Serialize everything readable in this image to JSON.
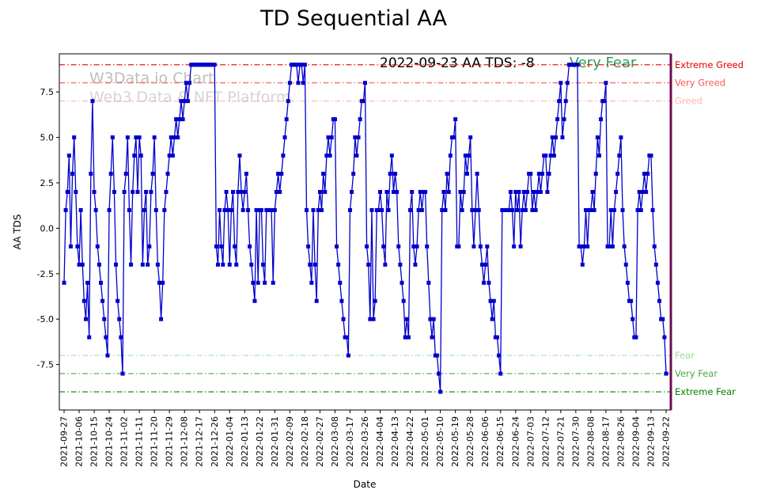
{
  "chart_data": {
    "type": "line",
    "title": "TD Sequential AA",
    "xlabel": "Date",
    "ylabel": "AA TDS",
    "ylim": [
      -10,
      9.6
    ],
    "legend": "none",
    "grid": false,
    "x_tick_every": 9,
    "x_tick_labels": [
      "2021-09-27",
      "2021-10-06",
      "2021-10-15",
      "2021-10-24",
      "2021-11-02",
      "2021-11-11",
      "2021-11-20",
      "2021-11-29",
      "2021-12-08",
      "2021-12-17",
      "2021-12-26",
      "2022-01-04",
      "2022-01-13",
      "2022-01-22",
      "2022-01-31",
      "2022-02-09",
      "2022-02-18",
      "2022-02-27",
      "2022-03-08",
      "2022-03-17",
      "2022-03-26",
      "2022-04-04",
      "2022-04-13",
      "2022-04-22",
      "2022-05-01",
      "2022-05-10",
      "2022-05-19",
      "2022-05-28",
      "2022-06-06",
      "2022-06-15",
      "2022-06-24",
      "2022-07-03",
      "2022-07-12",
      "2022-07-21",
      "2022-07-30",
      "2022-08-08",
      "2022-08-17",
      "2022-08-26",
      "2022-09-04",
      "2022-09-13",
      "2022-09-22"
    ],
    "y_tick_labels": [
      "7.5",
      "5.0",
      "2.5",
      "0.0",
      "-2.5",
      "-5.0",
      "-7.5"
    ],
    "series": [
      {
        "name": "AA TDS",
        "color": "#0000cc",
        "marker": "square",
        "values": [
          -3,
          1,
          2,
          4,
          -1,
          3,
          5,
          2,
          -1,
          -2,
          1,
          -2,
          -4,
          -5,
          -3,
          -6,
          3,
          7,
          2,
          1,
          -1,
          -2,
          -3,
          -4,
          -5,
          -6,
          -7,
          1,
          3,
          5,
          2,
          -2,
          -4,
          -5,
          -6,
          -8,
          2,
          3,
          5,
          1,
          -2,
          2,
          4,
          5,
          2,
          5,
          4,
          -2,
          1,
          2,
          -2,
          -1,
          2,
          3,
          5,
          1,
          -2,
          -3,
          -5,
          -3,
          1,
          2,
          3,
          4,
          5,
          4,
          5,
          6,
          5,
          6,
          7,
          6,
          7,
          8,
          7,
          8,
          9,
          9,
          9,
          9,
          9,
          9,
          9,
          9,
          9,
          9,
          9,
          9,
          9,
          9,
          9,
          -1,
          -2,
          1,
          -1,
          -2,
          1,
          2,
          1,
          -2,
          1,
          2,
          -1,
          -2,
          2,
          4,
          2,
          1,
          2,
          3,
          1,
          -1,
          -2,
          -3,
          -4,
          1,
          -3,
          1,
          1,
          -2,
          -3,
          1,
          1,
          1,
          1,
          -3,
          1,
          2,
          3,
          2,
          3,
          4,
          5,
          6,
          7,
          8,
          9,
          9,
          9,
          9,
          8,
          9,
          9,
          8,
          9,
          1,
          -1,
          -2,
          -3,
          1,
          -2,
          -4,
          1,
          2,
          1,
          3,
          2,
          4,
          5,
          4,
          5,
          6,
          6,
          -1,
          -2,
          -3,
          -4,
          -5,
          -6,
          -6,
          -7,
          1,
          2,
          3,
          5,
          4,
          5,
          6,
          7,
          7,
          8,
          -1,
          -2,
          -5,
          1,
          -5,
          -4,
          1,
          1,
          2,
          1,
          -1,
          -2,
          2,
          1,
          3,
          4,
          2,
          3,
          2,
          -1,
          -2,
          -3,
          -4,
          -6,
          -5,
          -6,
          1,
          2,
          -1,
          -2,
          -1,
          1,
          2,
          1,
          2,
          2,
          -1,
          -3,
          -5,
          -6,
          -5,
          -7,
          -7,
          -8,
          -9,
          1,
          2,
          1,
          3,
          2,
          4,
          5,
          5,
          6,
          -1,
          -1,
          2,
          1,
          2,
          4,
          3,
          4,
          5,
          1,
          -1,
          1,
          3,
          1,
          -1,
          -2,
          -3,
          -2,
          -1,
          -3,
          -4,
          -5,
          -4,
          -6,
          -6,
          -7,
          -8,
          1,
          1,
          1,
          1,
          1,
          2,
          1,
          -1,
          2,
          1,
          2,
          -1,
          1,
          2,
          1,
          2,
          3,
          3,
          1,
          2,
          1,
          2,
          3,
          2,
          3,
          4,
          4,
          2,
          3,
          4,
          5,
          4,
          5,
          6,
          7,
          8,
          5,
          6,
          7,
          8,
          9,
          9,
          9,
          9,
          9,
          9,
          -1,
          -1,
          -2,
          -1,
          1,
          -1,
          1,
          1,
          2,
          1,
          3,
          5,
          4,
          6,
          7,
          7,
          8,
          -1,
          -1,
          1,
          -1,
          1,
          2,
          3,
          4,
          5,
          1,
          -1,
          -2,
          -3,
          -4,
          -4,
          -5,
          -6,
          -6,
          1,
          2,
          1,
          2,
          3,
          2,
          3,
          4,
          4,
          1,
          -1,
          -2,
          -3,
          -4,
          -5,
          -5,
          -6,
          -8
        ]
      }
    ],
    "thresholds": [
      {
        "label": "Extreme Greed",
        "value": 9,
        "color": "#e60000"
      },
      {
        "label": "Very Greed",
        "value": 8,
        "color": "#ff5555"
      },
      {
        "label": "Greed",
        "value": 7,
        "color": "#ffb3b3"
      },
      {
        "label": "Fear",
        "value": -7,
        "color": "#99dd99"
      },
      {
        "label": "Very Fear",
        "value": -8,
        "color": "#44aa44"
      },
      {
        "label": "Extreme Fear",
        "value": -9,
        "color": "#008000"
      }
    ],
    "current_marker": {
      "color": "#6e0b50",
      "position": "right-edge"
    }
  },
  "annotation": {
    "text": "2022-09-23 AA TDS: -8",
    "status": "Very Fear",
    "status_color": "#2e9e53"
  },
  "watermark": {
    "line1": "W3Data.io Chart",
    "line2": "Web3 Data & NFT Platform"
  }
}
